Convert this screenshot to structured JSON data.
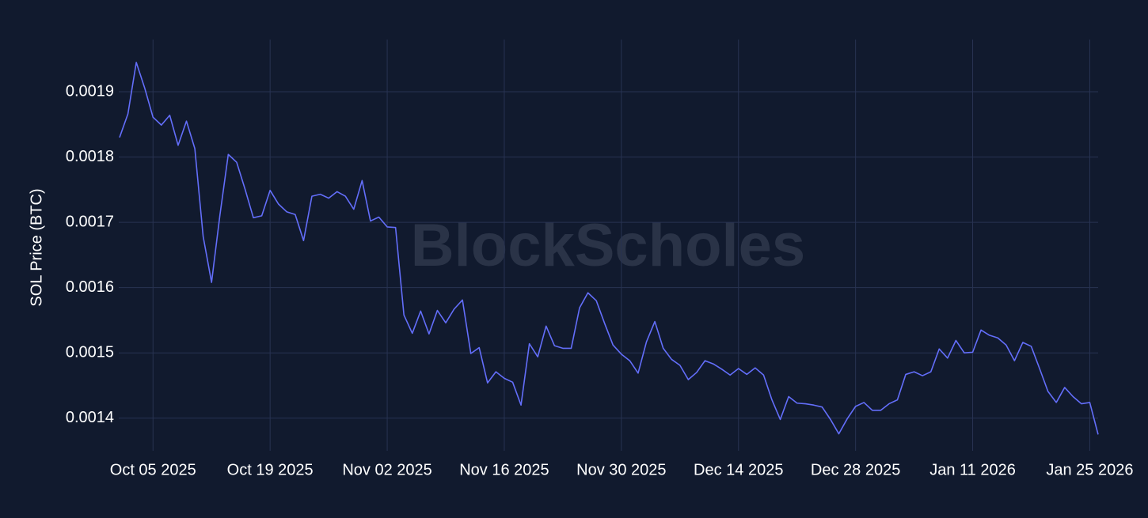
{
  "chart_data": {
    "type": "line",
    "y_label": "SOL Price (BTC)",
    "watermark": "BlockScholes",
    "x": [
      "2025-10-01",
      "2025-10-02",
      "2025-10-03",
      "2025-10-04",
      "2025-10-05",
      "2025-10-06",
      "2025-10-07",
      "2025-10-08",
      "2025-10-09",
      "2025-10-10",
      "2025-10-11",
      "2025-10-12",
      "2025-10-13",
      "2025-10-14",
      "2025-10-15",
      "2025-10-16",
      "2025-10-17",
      "2025-10-18",
      "2025-10-19",
      "2025-10-20",
      "2025-10-21",
      "2025-10-22",
      "2025-10-23",
      "2025-10-24",
      "2025-10-25",
      "2025-10-26",
      "2025-10-27",
      "2025-10-28",
      "2025-10-29",
      "2025-10-30",
      "2025-10-31",
      "2025-11-01",
      "2025-11-02",
      "2025-11-03",
      "2025-11-04",
      "2025-11-05",
      "2025-11-06",
      "2025-11-07",
      "2025-11-08",
      "2025-11-09",
      "2025-11-10",
      "2025-11-11",
      "2025-11-12",
      "2025-11-13",
      "2025-11-14",
      "2025-11-15",
      "2025-11-16",
      "2025-11-17",
      "2025-11-18",
      "2025-11-19",
      "2025-11-20",
      "2025-11-21",
      "2025-11-22",
      "2025-11-23",
      "2025-11-24",
      "2025-11-25",
      "2025-11-26",
      "2025-11-27",
      "2025-11-28",
      "2025-11-29",
      "2025-11-30",
      "2025-12-01",
      "2025-12-02",
      "2025-12-03",
      "2025-12-04",
      "2025-12-05",
      "2025-12-06",
      "2025-12-07",
      "2025-12-08",
      "2025-12-09",
      "2025-12-10",
      "2025-12-11",
      "2025-12-12",
      "2025-12-13",
      "2025-12-14",
      "2025-12-15",
      "2025-12-16",
      "2025-12-17",
      "2025-12-18",
      "2025-12-19",
      "2025-12-20",
      "2025-12-21",
      "2025-12-22",
      "2025-12-23",
      "2025-12-24",
      "2025-12-25",
      "2025-12-26",
      "2025-12-27",
      "2025-12-28",
      "2025-12-29",
      "2025-12-30",
      "2025-12-31",
      "2026-01-01",
      "2026-01-02",
      "2026-01-03",
      "2026-01-04",
      "2026-01-05",
      "2026-01-06",
      "2026-01-07",
      "2026-01-08",
      "2026-01-09",
      "2026-01-10",
      "2026-01-11",
      "2026-01-12",
      "2026-01-13",
      "2026-01-14",
      "2026-01-15",
      "2026-01-16",
      "2026-01-17",
      "2026-01-18",
      "2026-01-19",
      "2026-01-20",
      "2026-01-21",
      "2026-01-22",
      "2026-01-23",
      "2026-01-24",
      "2026-01-25",
      "2026-01-26"
    ],
    "series": [
      {
        "color": "#636efa",
        "values": [
          0.00183,
          0.001866,
          0.001945,
          0.001906,
          0.001861,
          0.001849,
          0.001864,
          0.001818,
          0.001855,
          0.001813,
          0.001678,
          0.001608,
          0.001711,
          0.001804,
          0.001792,
          0.001751,
          0.001707,
          0.00171,
          0.001749,
          0.001728,
          0.001716,
          0.001712,
          0.001672,
          0.00174,
          0.001743,
          0.001737,
          0.001747,
          0.00174,
          0.00172,
          0.001764,
          0.001702,
          0.001708,
          0.001693,
          0.001692,
          0.001558,
          0.00153,
          0.001564,
          0.001529,
          0.001565,
          0.001546,
          0.001567,
          0.001581,
          0.001499,
          0.001508,
          0.001454,
          0.001471,
          0.001461,
          0.001455,
          0.00142,
          0.001514,
          0.001494,
          0.001541,
          0.001511,
          0.001507,
          0.001507,
          0.001569,
          0.001592,
          0.00158,
          0.001545,
          0.001512,
          0.001498,
          0.001488,
          0.001469,
          0.001517,
          0.001548,
          0.001507,
          0.00149,
          0.001481,
          0.001459,
          0.00147,
          0.001488,
          0.001483,
          0.001475,
          0.001466,
          0.001476,
          0.001467,
          0.001477,
          0.001466,
          0.001428,
          0.001398,
          0.001433,
          0.001423,
          0.001422,
          0.00142,
          0.001417,
          0.001398,
          0.001376,
          0.001399,
          0.001418,
          0.001424,
          0.001412,
          0.001412,
          0.001422,
          0.001428,
          0.001467,
          0.001471,
          0.001465,
          0.001471,
          0.001506,
          0.001492,
          0.001519,
          0.0015,
          0.001501,
          0.001535,
          0.001527,
          0.001523,
          0.001512,
          0.001488,
          0.001516,
          0.00151,
          0.001476,
          0.001441,
          0.001424,
          0.001447,
          0.001433,
          0.001422,
          0.001424,
          0.001375
        ]
      }
    ],
    "xlim": [
      "2025-10-01",
      "2026-01-26"
    ],
    "xticks": [
      {
        "value": "2025-10-05",
        "label": "Oct 05 2025"
      },
      {
        "value": "2025-10-19",
        "label": "Oct 19 2025"
      },
      {
        "value": "2025-11-02",
        "label": "Nov 02 2025"
      },
      {
        "value": "2025-11-16",
        "label": "Nov 16 2025"
      },
      {
        "value": "2025-11-30",
        "label": "Nov 30 2025"
      },
      {
        "value": "2025-12-14",
        "label": "Dec 14 2025"
      },
      {
        "value": "2025-12-28",
        "label": "Dec 28 2025"
      },
      {
        "value": "2026-01-11",
        "label": "Jan 11 2026"
      },
      {
        "value": "2026-01-25",
        "label": "Jan 25 2026"
      }
    ],
    "ylim": [
      0.00135,
      0.00198
    ],
    "yticks": [
      0.0014,
      0.0015,
      0.0016,
      0.0017,
      0.0018,
      0.0019
    ],
    "grid": true
  }
}
